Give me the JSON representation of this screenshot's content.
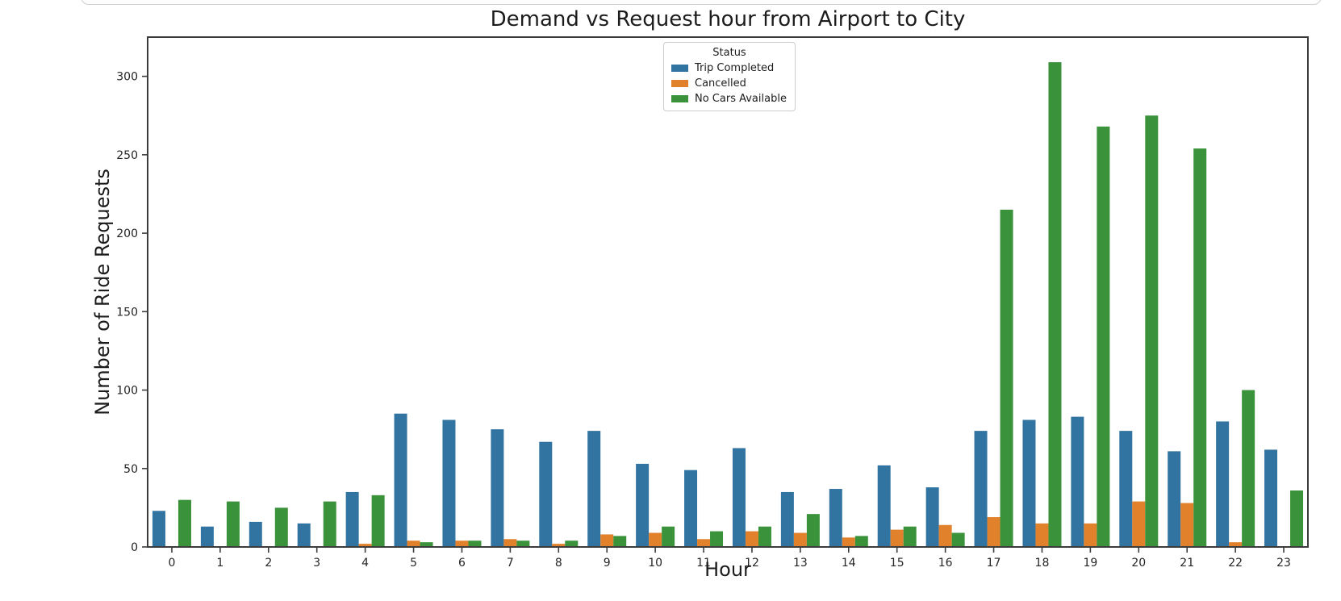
{
  "chart_data": {
    "type": "bar",
    "title": "Demand vs Request hour from Airport to City",
    "xlabel": "Hour",
    "ylabel": "Number of Ride Requests",
    "legend_title": "Status",
    "legend_position": "upper center",
    "grid": false,
    "categories": [
      "0",
      "1",
      "2",
      "3",
      "4",
      "5",
      "6",
      "7",
      "8",
      "9",
      "10",
      "11",
      "12",
      "13",
      "14",
      "15",
      "16",
      "17",
      "18",
      "19",
      "20",
      "21",
      "22",
      "23"
    ],
    "series": [
      {
        "name": "Trip Completed",
        "color": "#3274a1",
        "values": [
          23,
          13,
          16,
          15,
          35,
          85,
          81,
          75,
          67,
          74,
          53,
          49,
          63,
          35,
          37,
          52,
          38,
          74,
          81,
          83,
          74,
          61,
          80,
          62
        ]
      },
      {
        "name": "Cancelled",
        "color": "#e1812c",
        "values": [
          0,
          0,
          0,
          0,
          2,
          4,
          4,
          5,
          2,
          8,
          9,
          5,
          10,
          9,
          6,
          11,
          14,
          19,
          15,
          15,
          29,
          28,
          3,
          0
        ]
      },
      {
        "name": "No Cars Available",
        "color": "#3a923a",
        "values": [
          30,
          29,
          25,
          29,
          33,
          3,
          4,
          4,
          4,
          7,
          13,
          10,
          13,
          21,
          7,
          13,
          9,
          215,
          309,
          268,
          275,
          254,
          100,
          36
        ]
      }
    ],
    "ylim": [
      0,
      325
    ],
    "yticks": [
      0,
      50,
      100,
      150,
      200,
      250,
      300
    ],
    "axis_color": "#3c3c3c",
    "tick_label_color": "#262626"
  }
}
